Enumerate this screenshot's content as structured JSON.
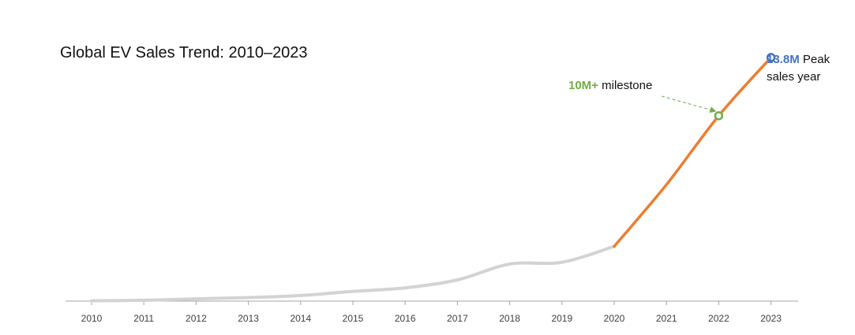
{
  "chart_data": {
    "type": "line",
    "title": "Global EV Sales Trend: 2010–2023",
    "xlabel": "",
    "ylabel": "",
    "x": [
      "2010",
      "2011",
      "2012",
      "2013",
      "2014",
      "2015",
      "2016",
      "2017",
      "2018",
      "2019",
      "2020",
      "2021",
      "2022",
      "2023"
    ],
    "series": [
      {
        "values": [
          0.02,
          0.05,
          0.13,
          0.2,
          0.32,
          0.55,
          0.75,
          1.2,
          2.1,
          2.2,
          3.1,
          6.6,
          10.5,
          13.8
        ]
      }
    ],
    "ylim": [
      0,
      14.6
    ],
    "grid": false,
    "legend": "none",
    "highlight_from": "2020",
    "colors": {
      "base_line": "#d3d3d3",
      "highlight_line": "#ed7d31",
      "milestone": "#70ad47",
      "peak": "#4472c4",
      "axis": "#a6a6a6"
    },
    "annotations": {
      "milestone": {
        "x": "2022",
        "value": "10M+",
        "text": "milestone"
      },
      "peak": {
        "x": "2023",
        "value": "13.8M",
        "text_line1": "Peak",
        "text_line2": "sales year"
      }
    }
  }
}
